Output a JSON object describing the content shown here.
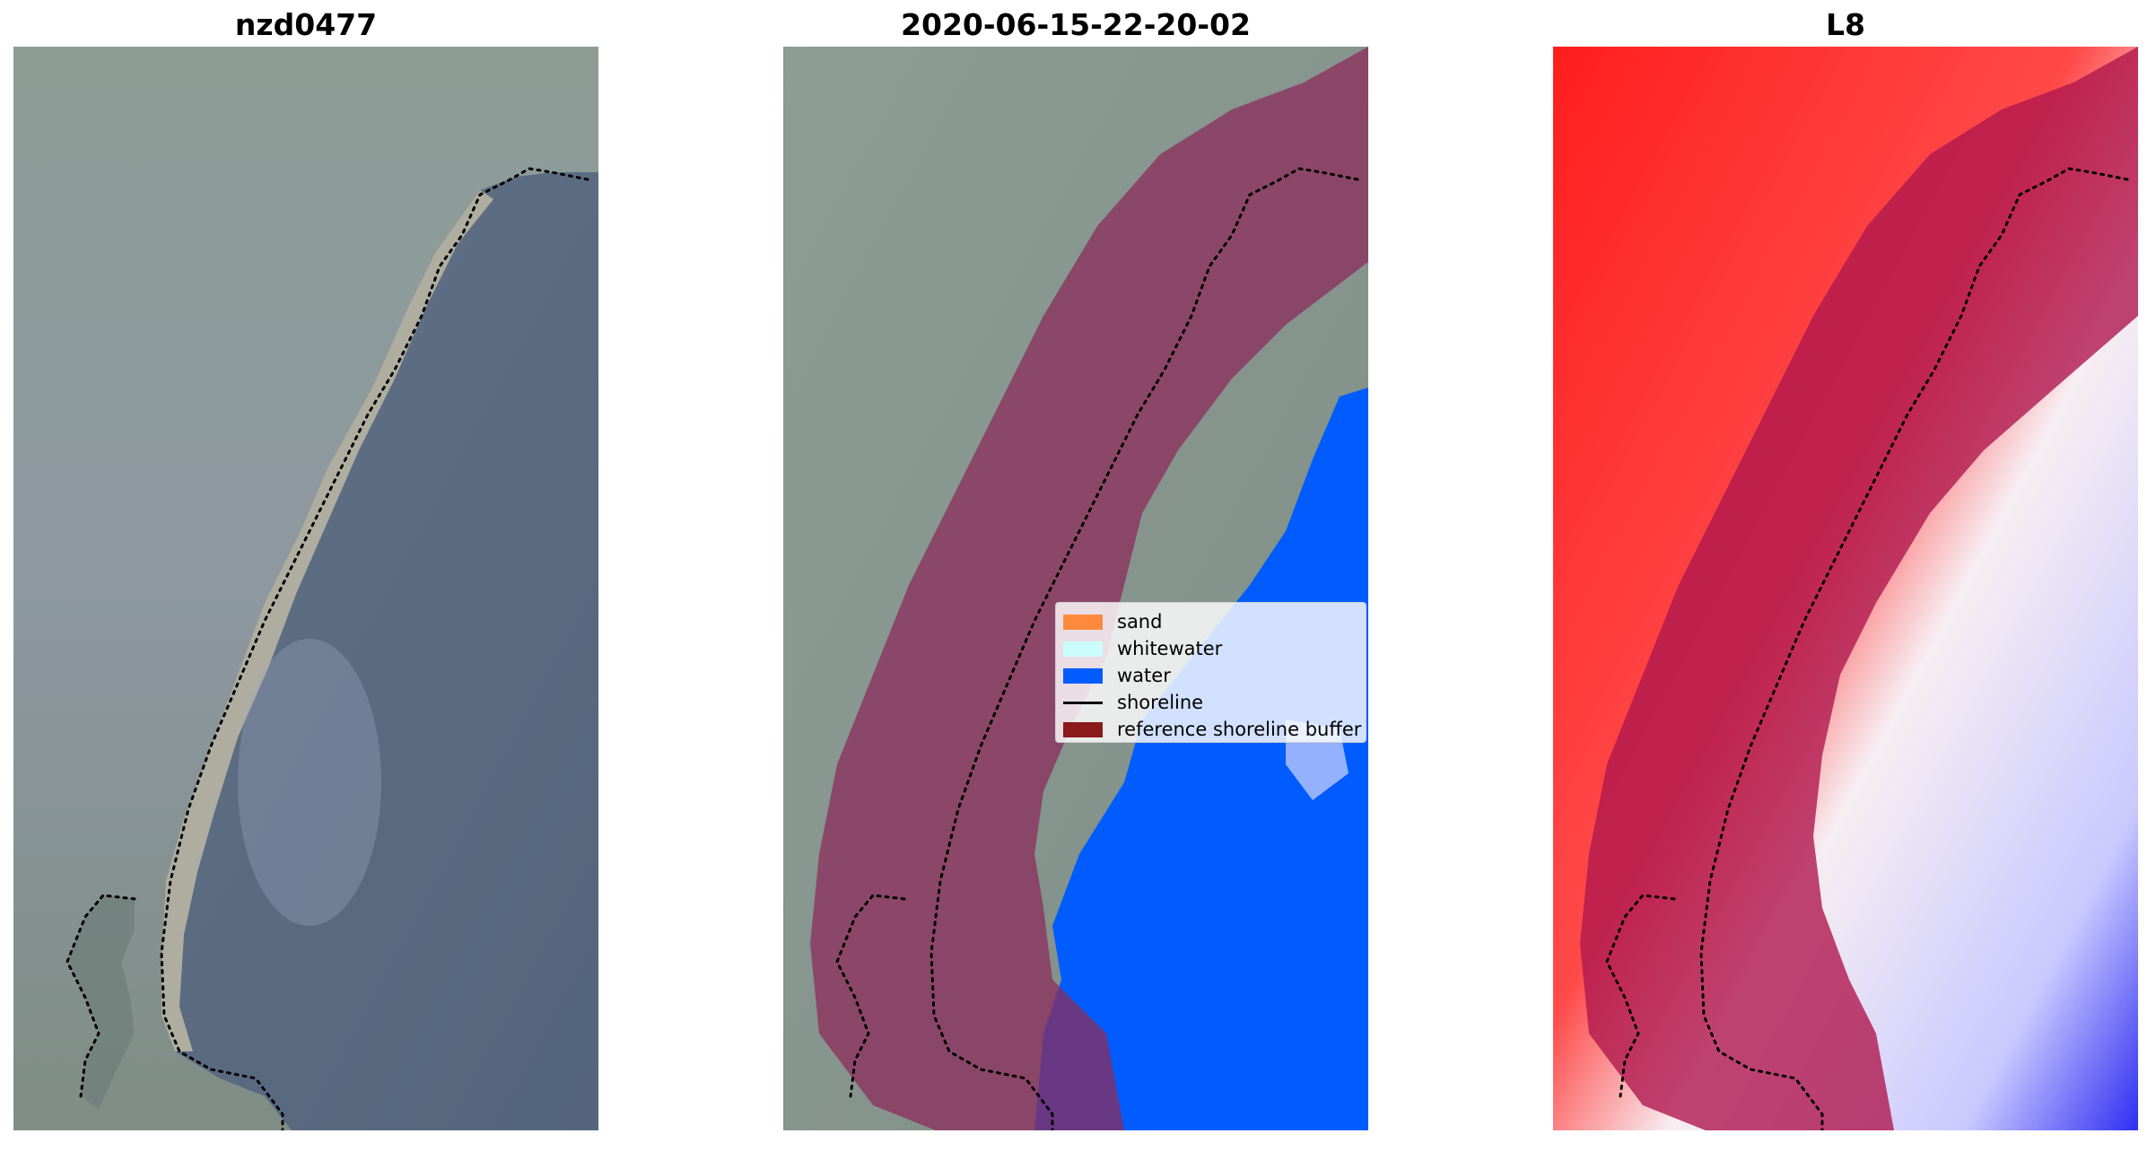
{
  "panels": [
    {
      "title": "nzd0477"
    },
    {
      "title": "2020-06-15-22-20-02"
    },
    {
      "title": "L8"
    }
  ],
  "legend": {
    "items": [
      {
        "label": "sand",
        "color": "#ff8a3d"
      },
      {
        "label": "whitewater",
        "color": "#ccfdfd"
      },
      {
        "label": "water",
        "color": "#005cff"
      },
      {
        "label": "shoreline",
        "color": "#000000"
      },
      {
        "label": "reference shoreline buffer",
        "color": "#8b1a1a"
      }
    ]
  },
  "colors": {
    "land_rgb": "#8a9a96",
    "sea_rgb": "#5f6f86",
    "buffer_overlay": "#8c2c5c",
    "water_class": "#005cff",
    "index_positive": "#ff1e1e",
    "index_negative": "#2e2ef2"
  }
}
